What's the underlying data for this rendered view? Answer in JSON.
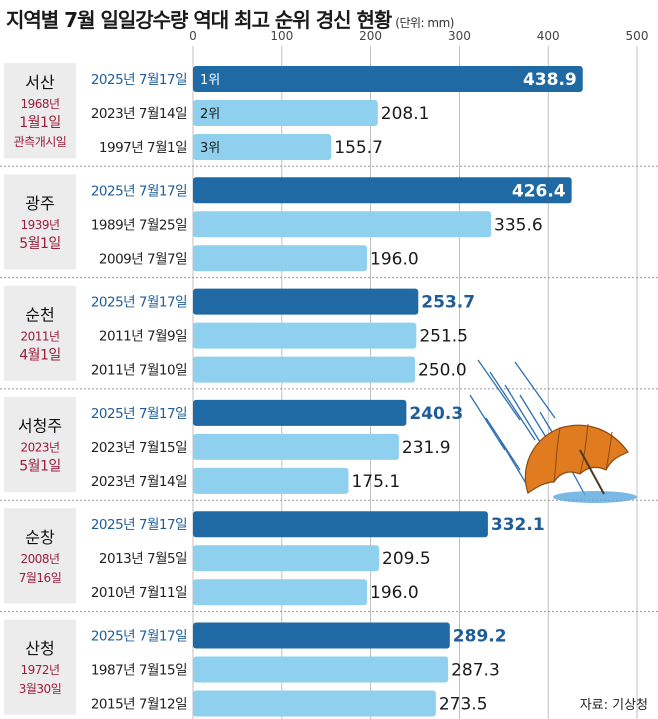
{
  "title": "지역별 7월 일일강수량 역대 최고 순위 경신 현황",
  "unit": "(단위: mm)",
  "source": "자료: 기상청",
  "colors": {
    "dark_bar": "#1f6aa5",
    "light_bar": "#8fd0ee",
    "region_box": "#ececec",
    "region_text": "#111111",
    "date_text": "#9b1c3b",
    "highlight_label": "#1f5d99",
    "grid": "#b0b0b0",
    "separator": "#999999"
  },
  "chart_data": {
    "type": "bar",
    "orientation": "horizontal",
    "xlim": [
      0,
      500
    ],
    "ticks": [
      0,
      100,
      200,
      300,
      400,
      500
    ],
    "grid": true,
    "groups": [
      {
        "region": "서산",
        "since": [
          "1968년",
          "1월1일",
          "관측개시일"
        ],
        "bars": [
          {
            "label": "2025년 7월17일",
            "value": 438.9,
            "value_label": "438.9",
            "rank": "1위",
            "highlight": true
          },
          {
            "label": "2023년 7월14일",
            "value": 208.1,
            "value_label": "208.1",
            "rank": "2위",
            "highlight": false
          },
          {
            "label": "1997년 7월1일",
            "value": 155.7,
            "value_label": "155.7",
            "rank": "3위",
            "highlight": false
          }
        ]
      },
      {
        "region": "광주",
        "since": [
          "1939년",
          "5월1일"
        ],
        "bars": [
          {
            "label": "2025년 7월17일",
            "value": 426.4,
            "value_label": "426.4",
            "highlight": true
          },
          {
            "label": "1989년 7월25일",
            "value": 335.6,
            "value_label": "335.6",
            "highlight": false
          },
          {
            "label": "2009년 7월7일",
            "value": 196.0,
            "value_label": "196.0",
            "highlight": false
          }
        ]
      },
      {
        "region": "순천",
        "since": [
          "2011년",
          "4월1일"
        ],
        "bars": [
          {
            "label": "2025년 7월17일",
            "value": 253.7,
            "value_label": "253.7",
            "highlight": true
          },
          {
            "label": "2011년 7월9일",
            "value": 251.5,
            "value_label": "251.5",
            "highlight": false
          },
          {
            "label": "2011년 7월10일",
            "value": 250.0,
            "value_label": "250.0",
            "highlight": false
          }
        ]
      },
      {
        "region": "서청주",
        "since": [
          "2023년",
          "5월1일"
        ],
        "bars": [
          {
            "label": "2025년 7월17일",
            "value": 240.3,
            "value_label": "240.3",
            "highlight": true
          },
          {
            "label": "2023년 7월15일",
            "value": 231.9,
            "value_label": "231.9",
            "highlight": false
          },
          {
            "label": "2023년 7월14일",
            "value": 175.1,
            "value_label": "175.1",
            "highlight": false
          }
        ]
      },
      {
        "region": "순창",
        "since": [
          "2008년",
          "7월16일"
        ],
        "bars": [
          {
            "label": "2025년 7월17일",
            "value": 332.1,
            "value_label": "332.1",
            "highlight": true
          },
          {
            "label": "2013년 7월5일",
            "value": 209.5,
            "value_label": "209.5",
            "highlight": false
          },
          {
            "label": "2010년 7월11일",
            "value": 196.0,
            "value_label": "196.0",
            "highlight": false
          }
        ]
      },
      {
        "region": "산청",
        "since": [
          "1972년",
          "3월30일"
        ],
        "bars": [
          {
            "label": "2025년 7월17일",
            "value": 289.2,
            "value_label": "289.2",
            "highlight": true
          },
          {
            "label": "1987년 7월15일",
            "value": 287.3,
            "value_label": "287.3",
            "highlight": false
          },
          {
            "label": "2015년 7월12일",
            "value": 273.5,
            "value_label": "273.5",
            "highlight": false
          }
        ]
      }
    ]
  }
}
